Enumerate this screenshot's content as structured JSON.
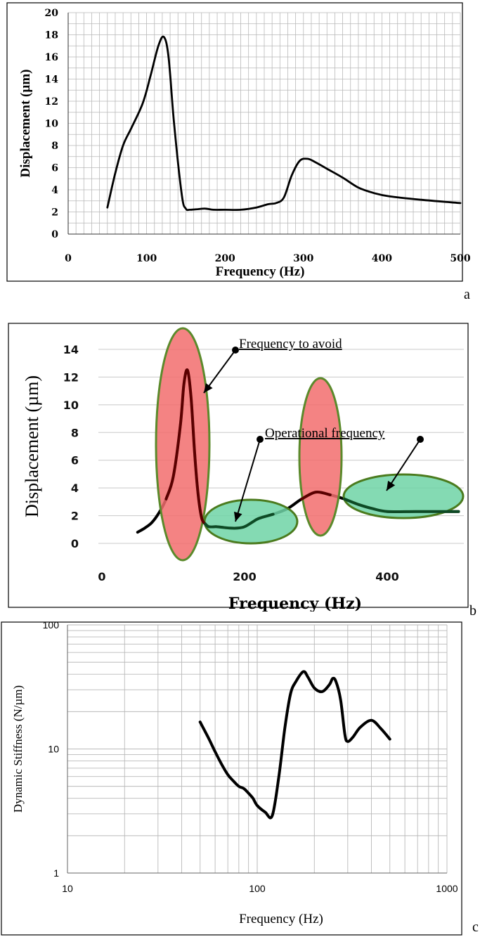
{
  "panel_letters": {
    "a": "a",
    "b": "b",
    "c": "c"
  },
  "colors": {
    "line": "#000000",
    "grid": "#b9b9b9",
    "avoid_fill": "#f26d6d",
    "avoid_stroke": "#5b8a2b",
    "operational_fill": "#6fd4a6",
    "operational_stroke": "#4b7b1e",
    "dark_red_line": "#5a0000",
    "dark_green_line": "#0e4a25"
  },
  "chart_data": [
    {
      "type": "line",
      "xlabel": "Frequency (Hz)",
      "ylabel": "Displacement (µm)",
      "xlim": [
        0,
        500
      ],
      "ylim": [
        0,
        20
      ],
      "xticks": [
        "0",
        "100",
        "200",
        "300",
        "400",
        "500"
      ],
      "yticks": [
        "0",
        "2",
        "4",
        "6",
        "8",
        "10",
        "12",
        "14",
        "16",
        "18",
        "20"
      ],
      "grid": true,
      "series": [
        {
          "x": [
            50,
            60,
            70,
            80,
            95,
            105,
            115,
            122,
            128,
            135,
            145,
            150,
            155,
            165,
            175,
            185,
            200,
            220,
            240,
            255,
            265,
            275,
            285,
            295,
            305,
            315,
            330,
            350,
            370,
            390,
            410,
            450,
            500
          ],
          "y": [
            2.4,
            5.5,
            8.0,
            9.5,
            11.8,
            14.3,
            17.0,
            17.8,
            16.0,
            10.0,
            3.5,
            2.3,
            2.2,
            2.25,
            2.3,
            2.2,
            2.2,
            2.2,
            2.4,
            2.7,
            2.8,
            3.3,
            5.3,
            6.6,
            6.8,
            6.5,
            5.9,
            5.1,
            4.2,
            3.7,
            3.4,
            3.1,
            2.8
          ]
        }
      ]
    },
    {
      "type": "line",
      "xlabel": "Frequency (Hz)",
      "ylabel": "Displacement (µm)",
      "xlim": [
        0,
        500
      ],
      "ylim": [
        0,
        14
      ],
      "xticks": [
        "0",
        "200",
        "400"
      ],
      "yticks": [
        "0",
        "2",
        "4",
        "6",
        "8",
        "10",
        "12",
        "14"
      ],
      "grid": false,
      "annotations": {
        "avoid": "Frequency to avoid",
        "operational": "Operational frequency"
      },
      "series": [
        {
          "x": [
            50,
            60,
            70,
            80,
            90,
            100,
            110,
            115,
            120,
            125,
            130,
            135,
            140,
            145,
            150,
            160,
            170,
            180,
            190,
            200,
            210,
            220,
            240,
            260,
            280,
            300,
            320,
            340,
            360,
            380,
            400,
            440,
            480,
            500
          ],
          "y": [
            0.8,
            1.1,
            1.5,
            2.2,
            3.2,
            4.8,
            8.5,
            11.5,
            12.5,
            10.5,
            6.5,
            3.5,
            1.8,
            1.4,
            1.2,
            1.2,
            1.15,
            1.1,
            1.1,
            1.2,
            1.5,
            1.8,
            2.1,
            2.5,
            3.2,
            3.7,
            3.5,
            3.2,
            2.8,
            2.5,
            2.3,
            2.3,
            2.3,
            2.3
          ]
        }
      ]
    },
    {
      "type": "line",
      "xlabel": "Frequency (Hz)",
      "ylabel": "Dynamic  Stiffness  (N/µm)",
      "xscale": "log",
      "yscale": "log",
      "xlim": [
        10,
        1000
      ],
      "ylim": [
        1,
        100
      ],
      "xticks": [
        "10",
        "100",
        "1000"
      ],
      "yticks": [
        "1",
        "10",
        "100"
      ],
      "grid": true,
      "series": [
        {
          "x": [
            50,
            55,
            60,
            65,
            70,
            75,
            80,
            85,
            90,
            95,
            100,
            110,
            120,
            130,
            140,
            150,
            160,
            175,
            185,
            200,
            220,
            240,
            250,
            260,
            275,
            290,
            300,
            320,
            350,
            400,
            450,
            500
          ],
          "y": [
            16.5,
            12.5,
            9.5,
            7.5,
            6.2,
            5.5,
            5.0,
            4.8,
            4.4,
            4.0,
            3.5,
            3.1,
            2.9,
            6.0,
            15.0,
            28.0,
            35.0,
            42.0,
            38.0,
            31.0,
            29.0,
            33.0,
            37.0,
            35.0,
            25.0,
            13.0,
            11.5,
            12.5,
            15.0,
            17.0,
            14.5,
            12.0
          ]
        }
      ]
    }
  ]
}
